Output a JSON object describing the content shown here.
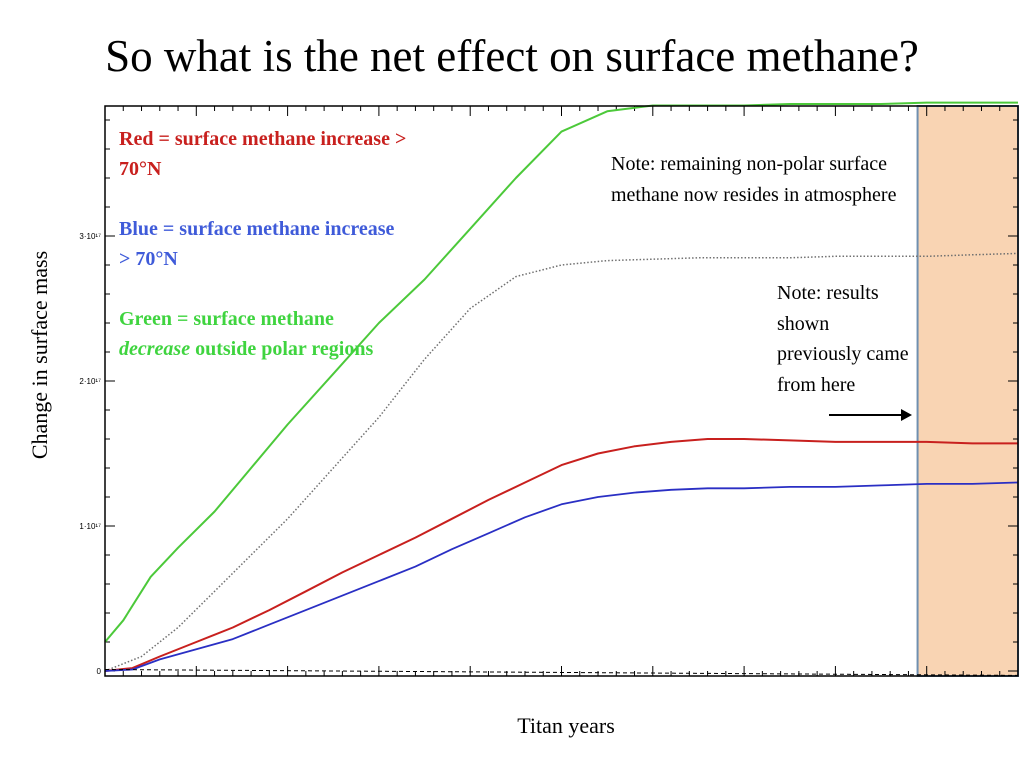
{
  "title": "So what is the net effect on surface methane?",
  "legend": {
    "red": "Red = surface methane increase > 70°N",
    "blue": "Blue = surface methane increase > 70°N",
    "green_prefix": "Green = surface methane ",
    "green_em": "decrease",
    "green_suffix": " outside polar regions"
  },
  "notes": {
    "note1": "Note: remaining non-polar surface methane now resides in atmosphere",
    "note2": "Note: results shown previously came from here"
  },
  "colors": {
    "red": "#c8201e",
    "blue": "#2a2fc4",
    "green": "#4cc93a",
    "dotted": "#707070",
    "highlight": "#f9d4b3",
    "highlight_border": "#6f8fb0"
  },
  "chart_data": {
    "type": "line",
    "xlabel": "Titan years",
    "ylabel": "Change in surface mass",
    "ylim": [
      0,
      4e+17
    ],
    "xlim": [
      0,
      100
    ],
    "yticks": [
      {
        "value": 0,
        "label": "0"
      },
      {
        "value": 1e+17,
        "label": "1·10¹⁷"
      },
      {
        "value": 2e+17,
        "label": "2·10¹⁷"
      },
      {
        "value": 3e+17,
        "label": "3·10¹⁷"
      }
    ],
    "highlight_x_range": [
      89,
      100
    ],
    "series": [
      {
        "key": "green",
        "x": [
          0,
          2,
          5,
          8,
          12,
          16,
          20,
          25,
          30,
          35,
          40,
          45,
          50,
          55,
          60,
          65,
          70,
          75,
          80,
          85,
          90,
          95,
          100
        ],
        "values": [
          2e+16,
          3.5e+16,
          6.5e+16,
          8.5e+16,
          1.1e+17,
          1.4e+17,
          1.7e+17,
          2.05e+17,
          2.4e+17,
          2.7e+17,
          3.05e+17,
          3.4e+17,
          3.72e+17,
          3.86e+17,
          3.9e+17,
          3.9e+17,
          3.9e+17,
          3.91e+17,
          3.91e+17,
          3.91e+17,
          3.92e+17,
          3.92e+17,
          3.92e+17
        ]
      },
      {
        "key": "dotted",
        "x": [
          0,
          4,
          8,
          12,
          16,
          20,
          25,
          30,
          35,
          40,
          45,
          50,
          55,
          60,
          65,
          70,
          75,
          80,
          85,
          90,
          95,
          100
        ],
        "values": [
          0.0,
          1e+16,
          3e+16,
          5.5e+16,
          8e+16,
          1.05e+17,
          1.4e+17,
          1.75e+17,
          2.15e+17,
          2.5e+17,
          2.72e+17,
          2.8e+17,
          2.83e+17,
          2.84e+17,
          2.85e+17,
          2.85e+17,
          2.85e+17,
          2.86e+17,
          2.86e+17,
          2.86e+17,
          2.87e+17,
          2.88e+17
        ]
      },
      {
        "key": "red",
        "x": [
          0,
          3,
          6,
          10,
          14,
          18,
          22,
          26,
          30,
          34,
          38,
          42,
          46,
          50,
          54,
          58,
          62,
          66,
          70,
          75,
          80,
          85,
          90,
          95,
          100
        ],
        "values": [
          0.0,
          2000000000000000.0,
          1e+16,
          2e+16,
          3e+16,
          4.2e+16,
          5.5e+16,
          6.8e+16,
          8e+16,
          9.2e+16,
          1.05e+17,
          1.18e+17,
          1.3e+17,
          1.42e+17,
          1.5e+17,
          1.55e+17,
          1.58e+17,
          1.6e+17,
          1.6e+17,
          1.59e+17,
          1.58e+17,
          1.58e+17,
          1.58e+17,
          1.57e+17,
          1.57e+17
        ]
      },
      {
        "key": "blue",
        "x": [
          0,
          3,
          6,
          10,
          14,
          18,
          22,
          26,
          30,
          34,
          38,
          42,
          46,
          50,
          54,
          58,
          62,
          66,
          70,
          75,
          80,
          85,
          90,
          95,
          100
        ],
        "values": [
          0.0,
          1000000000000000.0,
          8000000000000000.0,
          1.5e+16,
          2.2e+16,
          3.2e+16,
          4.2e+16,
          5.2e+16,
          6.2e+16,
          7.2e+16,
          8.4e+16,
          9.5e+16,
          1.06e+17,
          1.15e+17,
          1.2e+17,
          1.23e+17,
          1.25e+17,
          1.26e+17,
          1.26e+17,
          1.27e+17,
          1.27e+17,
          1.28e+17,
          1.29e+17,
          1.29e+17,
          1.3e+17
        ]
      },
      {
        "key": "baseline",
        "x": [
          0,
          100
        ],
        "values": [
          1000000000000000.0,
          -3000000000000000.0
        ]
      }
    ]
  }
}
